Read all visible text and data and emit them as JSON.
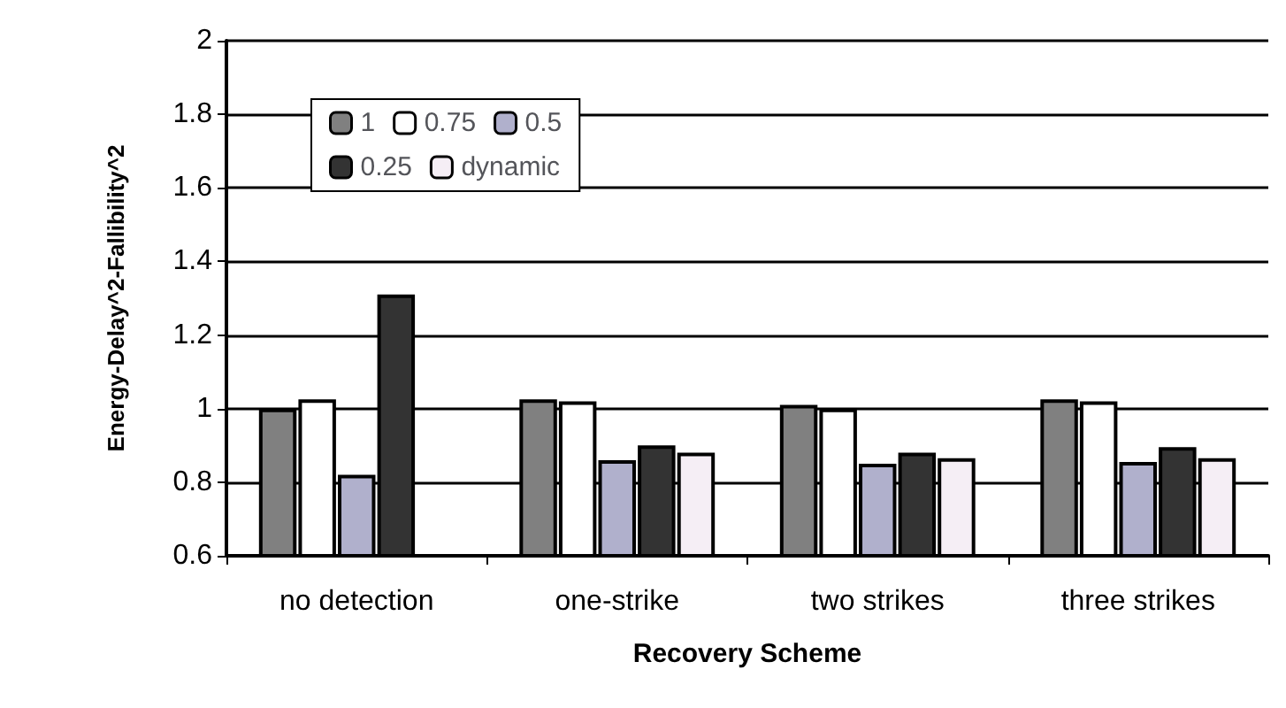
{
  "chart_data": {
    "type": "bar",
    "xlabel": "Recovery Scheme",
    "ylabel": "Energy-Delay^2-Fallibility^2",
    "categories": [
      "no detection",
      "one-strike",
      "two strikes",
      "three strikes"
    ],
    "series": [
      {
        "name": "1",
        "color": "#808080",
        "values": [
          1.0,
          1.025,
          1.01,
          1.025
        ]
      },
      {
        "name": "0.75",
        "color": "#ffffff",
        "values": [
          1.025,
          1.02,
          1.0,
          1.02
        ]
      },
      {
        "name": "0.5",
        "color": "#b0b0cc",
        "values": [
          0.82,
          0.86,
          0.85,
          0.855
        ]
      },
      {
        "name": "0.25",
        "color": "#333333",
        "values": [
          1.31,
          0.9,
          0.88,
          0.895
        ]
      },
      {
        "name": "dynamic",
        "color": "#f5eef5",
        "values": [
          null,
          0.88,
          0.865,
          0.865
        ]
      }
    ],
    "ylim": [
      0.6,
      2
    ],
    "yticks": [
      0.6,
      0.8,
      1,
      1.2,
      1.4,
      1.6,
      1.8,
      2
    ],
    "grid": "y",
    "legend": "top left"
  }
}
